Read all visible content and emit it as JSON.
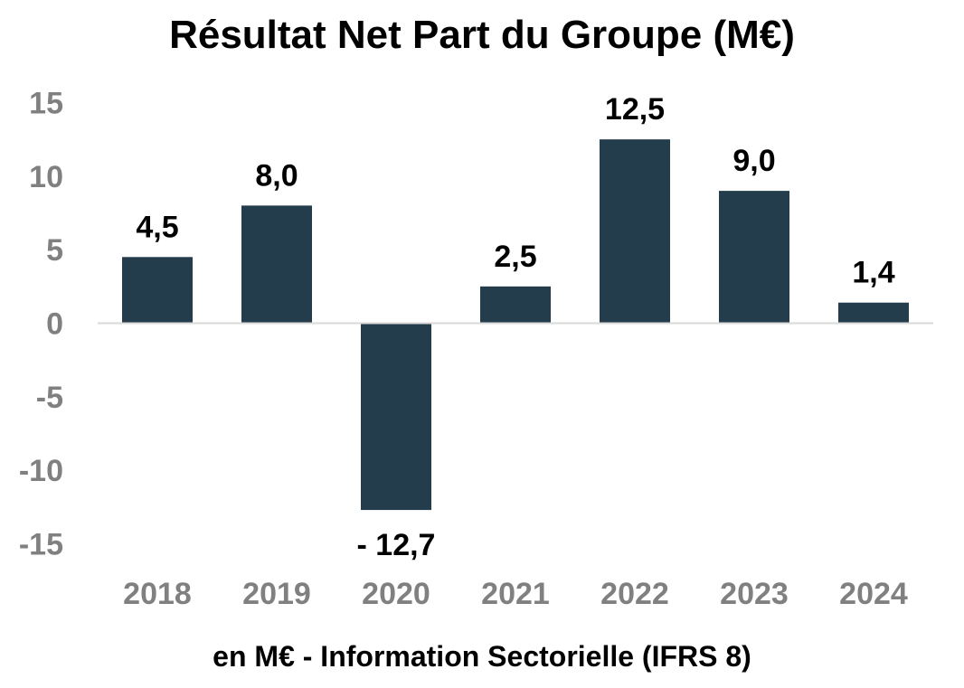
{
  "chart_data": {
    "type": "bar",
    "title": "Résultat Net Part du Groupe (M€)",
    "footer": "en M€ - Information Sectorielle (IFRS 8)",
    "categories": [
      "2018",
      "2019",
      "2020",
      "2021",
      "2022",
      "2023",
      "2024"
    ],
    "values": [
      4.5,
      8.0,
      -12.7,
      2.5,
      12.5,
      9.0,
      1.4
    ],
    "data_labels": [
      "4,5",
      "8,0",
      "- 12,7",
      "2,5",
      "12,5",
      "9,0",
      "1,4"
    ],
    "yticks": [
      15,
      10,
      5,
      0,
      -5,
      -10,
      -15
    ],
    "ytick_labels": [
      "15",
      "10",
      "5",
      "0",
      "-5",
      "-10",
      "-15"
    ],
    "ylim": [
      -15,
      15
    ],
    "xlabel": "",
    "ylabel": "",
    "grid": false,
    "legend": "none",
    "bar_color": "#233d4d",
    "axis_color": "#d9d9d9",
    "tick_color": "#808080"
  }
}
